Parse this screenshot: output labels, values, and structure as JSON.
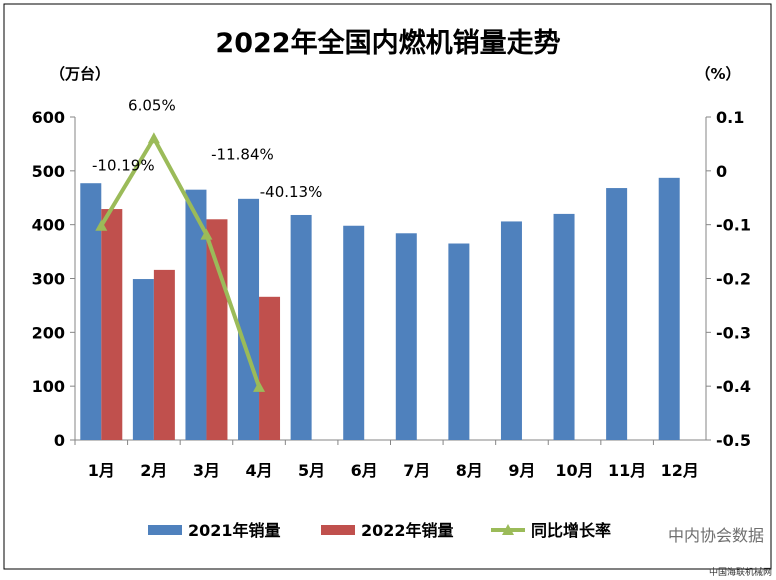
{
  "chart_data": {
    "type": "bar",
    "title": "2022年全国内燃机销量走势",
    "y_left_unit": "（万台）",
    "y_right_unit": "（%）",
    "categories": [
      "1月",
      "2月",
      "3月",
      "4月",
      "5月",
      "6月",
      "7月",
      "8月",
      "9月",
      "10月",
      "11月",
      "12月"
    ],
    "series": [
      {
        "name": "2021年销量",
        "type": "bar",
        "axis": "left",
        "color": "#4f81bd",
        "values": [
          477,
          299,
          465,
          448,
          418,
          398,
          384,
          365,
          406,
          420,
          468,
          487
        ]
      },
      {
        "name": "2022年销量",
        "type": "bar",
        "axis": "left",
        "color": "#c0504d",
        "values": [
          429,
          316,
          410,
          266,
          null,
          null,
          null,
          null,
          null,
          null,
          null,
          null
        ]
      },
      {
        "name": "同比增长率",
        "type": "line",
        "axis": "right",
        "color": "#9bbb59",
        "values": [
          -0.1019,
          0.0605,
          -0.1184,
          -0.4013,
          null,
          null,
          null,
          null,
          null,
          null,
          null,
          null
        ],
        "labels": [
          "-10.19%",
          "6.05%",
          "-11.84%",
          "-40.13%"
        ]
      }
    ],
    "y_left": {
      "min": 0,
      "max": 600,
      "ticks": [
        "0",
        "100",
        "200",
        "300",
        "400",
        "500",
        "600"
      ]
    },
    "y_right": {
      "min": -0.5,
      "max": 0.1,
      "ticks": [
        "-0.5",
        "-0.4",
        "-0.3",
        "-0.2",
        "-0.1",
        "0",
        "0.1"
      ]
    },
    "legend_position": "bottom",
    "grid": false
  },
  "watermark": "中内协会数据",
  "source": "中国海联机械网",
  "colors": {
    "frame": "#000000",
    "axis": "#868686",
    "text": "#000000"
  }
}
